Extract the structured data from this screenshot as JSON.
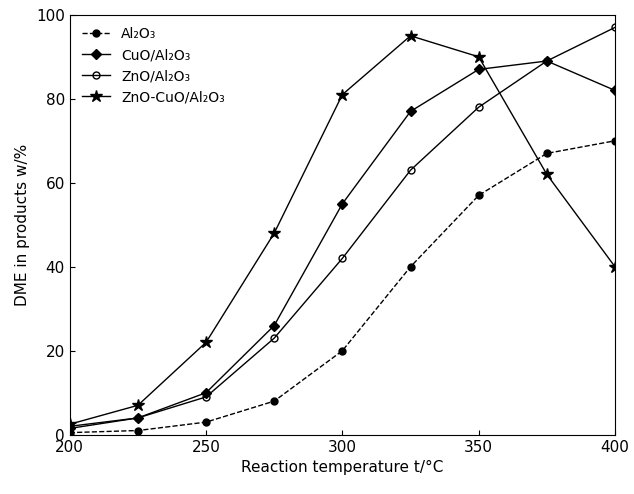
{
  "chart_data": {
    "type": "line",
    "x_label": "Reaction temperature t/°C",
    "y_label": "DME in products w/%",
    "x": [
      200,
      225,
      250,
      275,
      300,
      325,
      350,
      375,
      400
    ],
    "series": [
      {
        "name": "Al₂O₃",
        "color": "#000000",
        "marker": "circle",
        "line_style": "dashed",
        "values": [
          0.5,
          1,
          3,
          8,
          20,
          40,
          57,
          67,
          70
        ]
      },
      {
        "name": "CuO/Al₂O₃",
        "color": "#000000",
        "marker": "diamond",
        "line_style": "solid",
        "values": [
          1.5,
          4,
          10,
          26,
          55,
          77,
          87,
          89,
          82
        ]
      },
      {
        "name": "ZnO/Al₂O₃",
        "color": "#000000",
        "marker": "hollow_circle",
        "line_style": "solid",
        "values": [
          2,
          4,
          9,
          23,
          42,
          63,
          78,
          89,
          97
        ]
      },
      {
        "name": "ZnO-CuO/Al₂O₃",
        "color": "#000000",
        "marker": "star",
        "line_style": "solid",
        "values": [
          2.5,
          7,
          22,
          48,
          81,
          95,
          90,
          62,
          40
        ]
      }
    ],
    "xlim": [
      200,
      400
    ],
    "xticks": [
      200,
      250,
      300,
      350,
      400
    ],
    "ylim": [
      0,
      100
    ],
    "yticks": [
      0,
      20,
      40,
      60,
      80,
      100
    ],
    "grid": false,
    "legend": "upper left"
  }
}
